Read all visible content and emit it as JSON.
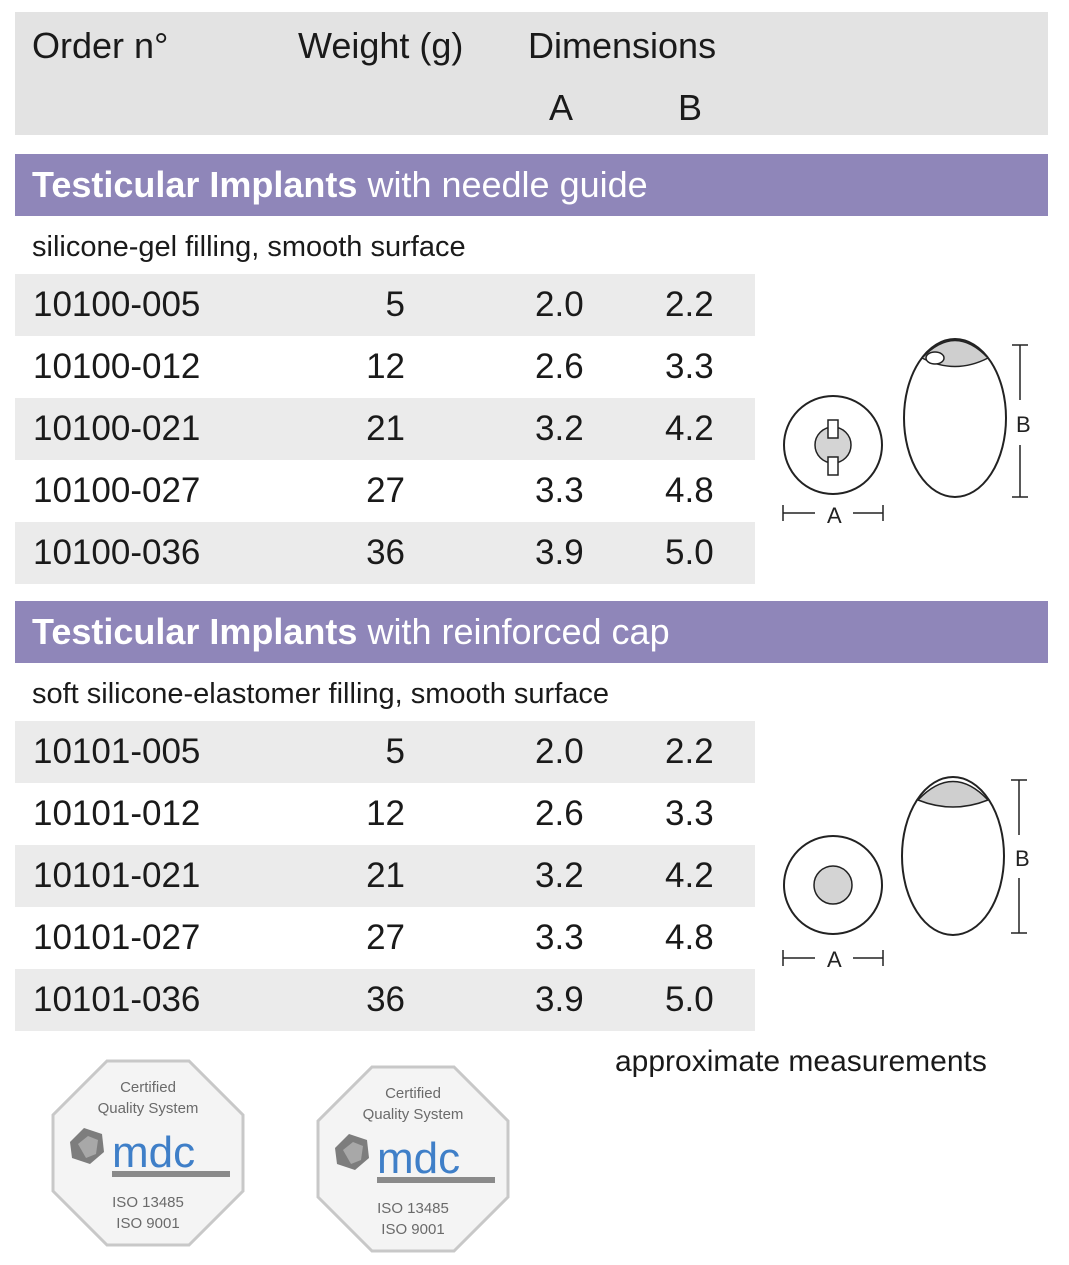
{
  "header": {
    "order_label": "Order n°",
    "weight_label": "Weight (g)",
    "dimensions_label": "Dimensions",
    "dim_a_label": "A",
    "dim_b_label": "B"
  },
  "sections": [
    {
      "title_bold": "Testicular Implants",
      "title_rest": " with needle guide",
      "subtitle": "silicone-gel filling, smooth surface",
      "rows": [
        {
          "order": "10100-005",
          "weight": "5",
          "a": "2.0",
          "b": "2.2"
        },
        {
          "order": "10100-012",
          "weight": "12",
          "a": "2.6",
          "b": "3.3"
        },
        {
          "order": "10100-021",
          "weight": "21",
          "a": "3.2",
          "b": "4.2"
        },
        {
          "order": "10100-027",
          "weight": "27",
          "a": "3.3",
          "b": "4.8"
        },
        {
          "order": "10100-036",
          "weight": "36",
          "a": "3.9",
          "b": "5.0"
        }
      ],
      "diagram": {
        "label_a": "A",
        "label_b": "B"
      }
    },
    {
      "title_bold": "Testicular Implants",
      "title_rest": " with reinforced cap",
      "subtitle": "soft silicone-elastomer filling, smooth surface",
      "rows": [
        {
          "order": "10101-005",
          "weight": "5",
          "a": "2.0",
          "b": "2.2"
        },
        {
          "order": "10101-012",
          "weight": "12",
          "a": "2.6",
          "b": "3.3"
        },
        {
          "order": "10101-021",
          "weight": "21",
          "a": "3.2",
          "b": "4.2"
        },
        {
          "order": "10101-027",
          "weight": "27",
          "a": "3.3",
          "b": "4.8"
        },
        {
          "order": "10101-036",
          "weight": "36",
          "a": "3.9",
          "b": "5.0"
        }
      ],
      "diagram": {
        "label_a": "A",
        "label_b": "B"
      }
    }
  ],
  "note": "approximate measurements",
  "badges": [
    {
      "line1": "Certified",
      "line2": "Quality System",
      "brand": "mdc",
      "cert1": "ISO 13485",
      "cert2": "ISO 9001"
    },
    {
      "line1": "Certified",
      "line2": "Quality System",
      "brand": "mdc",
      "cert1": "ISO 13485",
      "cert2": "ISO 9001"
    }
  ],
  "colors": {
    "section_bar": "#8f86b9",
    "header_band": "#e3e3e3",
    "row_shade": "#ebebeb",
    "brand_blue": "#3f7fc8"
  }
}
